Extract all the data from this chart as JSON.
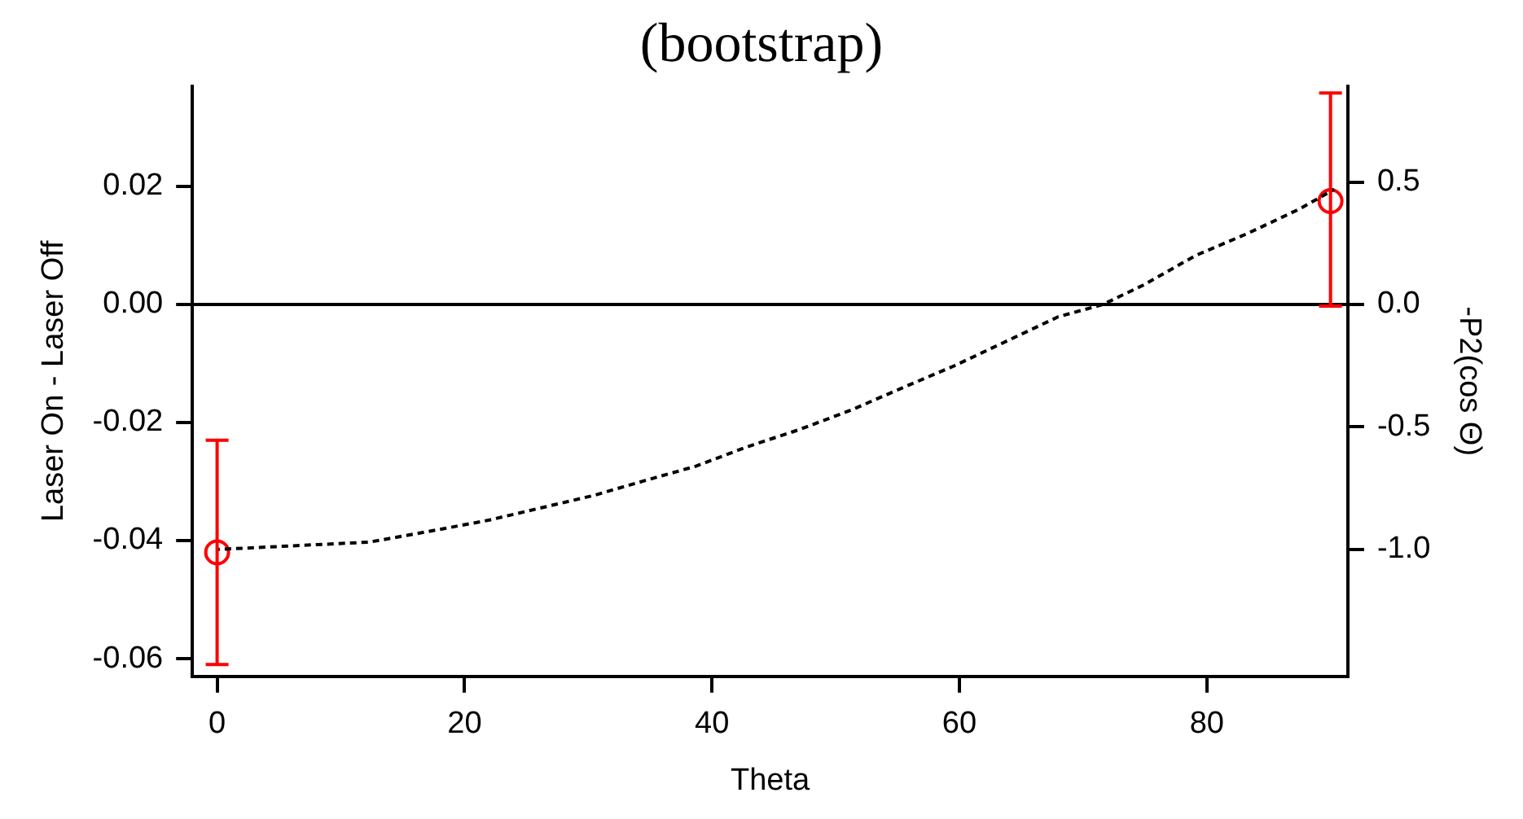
{
  "chart_data": {
    "type": "scatter",
    "title": "(bootstrap)",
    "xlabel": "Theta",
    "ylabel": "Laser On - Laser Off",
    "y2label": "-P2(cos Θ)",
    "x": [
      0,
      90
    ],
    "series": [
      {
        "color": "#ff0000",
        "marker": "circle",
        "values": [
          -0.042,
          0.0175
        ],
        "errors": [
          [
            -0.061,
            -0.023
          ],
          [
            -0.0003,
            0.0358
          ]
        ]
      },
      {
        "type": "line",
        "axis": "y2",
        "color": "#000000",
        "marker": "none",
        "line_style": "dashed",
        "x": [
          0,
          12.3,
          17.8,
          22.0,
          26.2,
          30.4,
          34.5,
          38.7,
          42.9,
          47.1,
          51.3,
          55.4,
          59.6,
          63.8,
          68.0,
          71.6,
          74.9,
          79.1,
          83.3,
          87.5,
          90.3
        ],
        "values": [
          -1.0,
          -0.97,
          -0.92,
          -0.88,
          -0.83,
          -0.78,
          -0.72,
          -0.66,
          -0.58,
          -0.51,
          -0.43,
          -0.34,
          -0.25,
          -0.15,
          -0.05,
          0.0,
          0.08,
          0.2,
          0.29,
          0.39,
          0.47
        ]
      }
    ],
    "xlim": [
      -2,
      91.4
    ],
    "xticks": [
      0,
      20,
      40,
      60,
      80
    ],
    "ylim": [
      -0.063,
      0.037
    ],
    "yticks": [
      -0.06,
      -0.04,
      -0.02,
      {
        "value": 0,
        "label": "0.00"
      },
      0.02
    ],
    "y2lim": [
      -1.518,
      0.892
    ],
    "y2ticks": [
      {
        "value": -1,
        "label": "-1.0"
      },
      -0.5,
      {
        "value": 0,
        "label": "0.0"
      },
      0.5
    ],
    "ref_lines": [
      {
        "axis": "y",
        "value": 0,
        "color": "#000000",
        "line_style": "solid"
      }
    ],
    "grid": false,
    "legend": false
  }
}
